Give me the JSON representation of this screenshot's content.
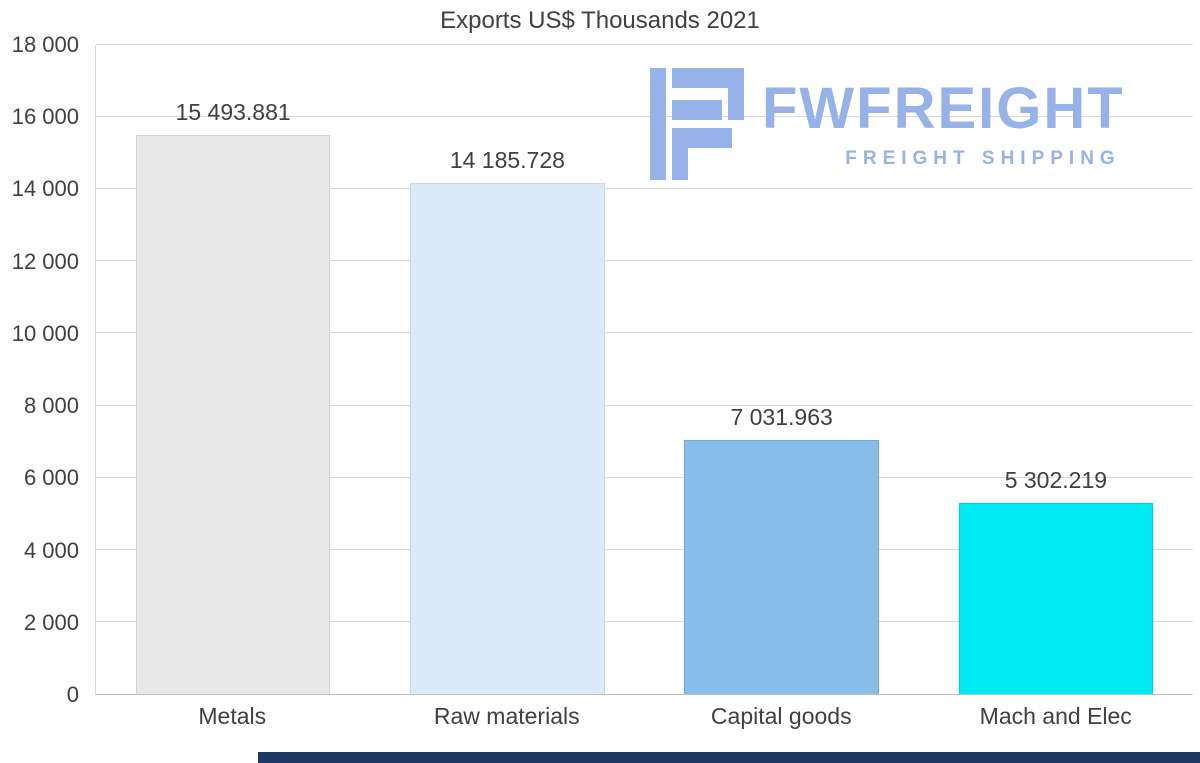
{
  "chart_data": {
    "type": "bar",
    "title": "Exports US$ Thousands 2021",
    "categories": [
      "Metals",
      "Raw materials",
      "Capital goods",
      "Mach and Elec"
    ],
    "values": [
      15493.881,
      14185.728,
      7031.963,
      5302.219
    ],
    "value_labels": [
      "15 493.881",
      "14 185.728",
      "7 031.963",
      "5 302.219"
    ],
    "bar_colors": [
      "#e8e8e8",
      "#dce9f8",
      "#87bde9",
      "#00eaf2"
    ],
    "bar_border_colors": [
      "#d3d3d3",
      "#c3daf2",
      "#6fabde",
      "#00d2dc"
    ],
    "ylim": [
      0,
      18000
    ],
    "ytick_step": 2000,
    "ytick_labels": [
      "0",
      "2 000",
      "4 000",
      "6 000",
      "8 000",
      "10 000",
      "12 000",
      "14 000",
      "16 000",
      "18 000"
    ],
    "xlabel": "",
    "ylabel": "",
    "grid": true,
    "legend": false
  },
  "watermark": {
    "brand": "FWFREIGHT",
    "tagline": "FREIGHT SHIPPING",
    "color": "#96b2e8"
  },
  "footer": {
    "color": "#203864"
  }
}
